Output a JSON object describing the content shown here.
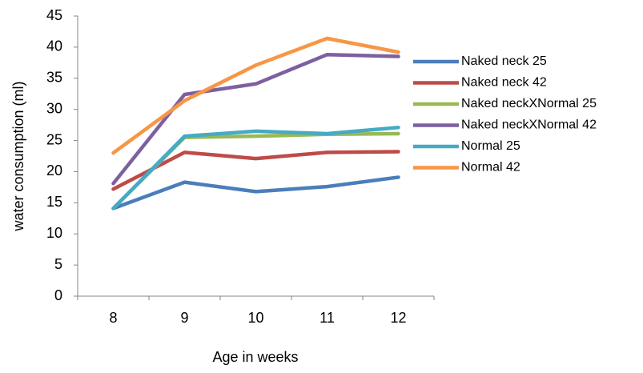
{
  "chart_data": {
    "type": "line",
    "x_label": "Age in weeks",
    "y_label": "water consumption (ml)",
    "categories": [
      "8",
      "9",
      "10",
      "11",
      "12"
    ],
    "ylim": [
      0,
      45
    ],
    "yticks": [
      0,
      5,
      10,
      15,
      20,
      25,
      30,
      35,
      40,
      45
    ],
    "grid": false,
    "legend": "right",
    "series": [
      {
        "name": "Naked neck 25",
        "color": "#4a7ebb",
        "values": [
          14.1,
          18.3,
          16.8,
          17.6,
          19.1
        ]
      },
      {
        "name": "Naked neck 42",
        "color": "#be4b48",
        "values": [
          17.2,
          23.1,
          22.1,
          23.1,
          23.2
        ]
      },
      {
        "name": "Naked neckXNormal 25",
        "color": "#98b954",
        "values": [
          14.1,
          25.5,
          25.7,
          26.0,
          26.1
        ]
      },
      {
        "name": "Naked neckXNormal 42",
        "color": "#7d60a0",
        "values": [
          18.1,
          32.4,
          34.1,
          38.8,
          38.5
        ]
      },
      {
        "name": "Normal 25",
        "color": "#46aac5",
        "values": [
          14.1,
          25.7,
          26.5,
          26.1,
          27.1
        ]
      },
      {
        "name": "Normal 42",
        "color": "#f79646",
        "values": [
          23.0,
          31.4,
          37.1,
          41.4,
          39.2
        ]
      }
    ]
  }
}
